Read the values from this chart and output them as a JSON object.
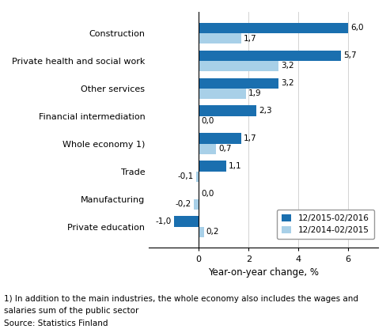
{
  "categories": [
    "Private education",
    "Manufacturing",
    "Trade",
    "Whole economy 1)",
    "Financial intermediation",
    "Other services",
    "Private health and social work",
    "Construction"
  ],
  "series1_label": "12/2015-02/2016",
  "series2_label": "12/2014-02/2015",
  "series1_values": [
    -1.0,
    0.0,
    1.1,
    1.7,
    2.3,
    3.2,
    5.7,
    6.0
  ],
  "series2_values": [
    0.2,
    -0.2,
    -0.1,
    0.7,
    0.0,
    1.9,
    3.2,
    1.7
  ],
  "series1_color": "#1a6faf",
  "series2_color": "#a8d0e8",
  "xlabel": "Year-on-year change, %",
  "footnote1": "1) In addition to the main industries, the whole economy also includes the wages and",
  "footnote2": "salaries sum of the public sector",
  "source": "Source: Statistics Finland",
  "xlim": [
    -2.0,
    7.2
  ],
  "xticks": [
    0,
    2,
    4,
    6
  ],
  "bar_height": 0.38,
  "label_fontsize": 7.5,
  "tick_fontsize": 8,
  "xlabel_fontsize": 8.5,
  "legend_fontsize": 7.5,
  "footnote_fontsize": 7.5
}
